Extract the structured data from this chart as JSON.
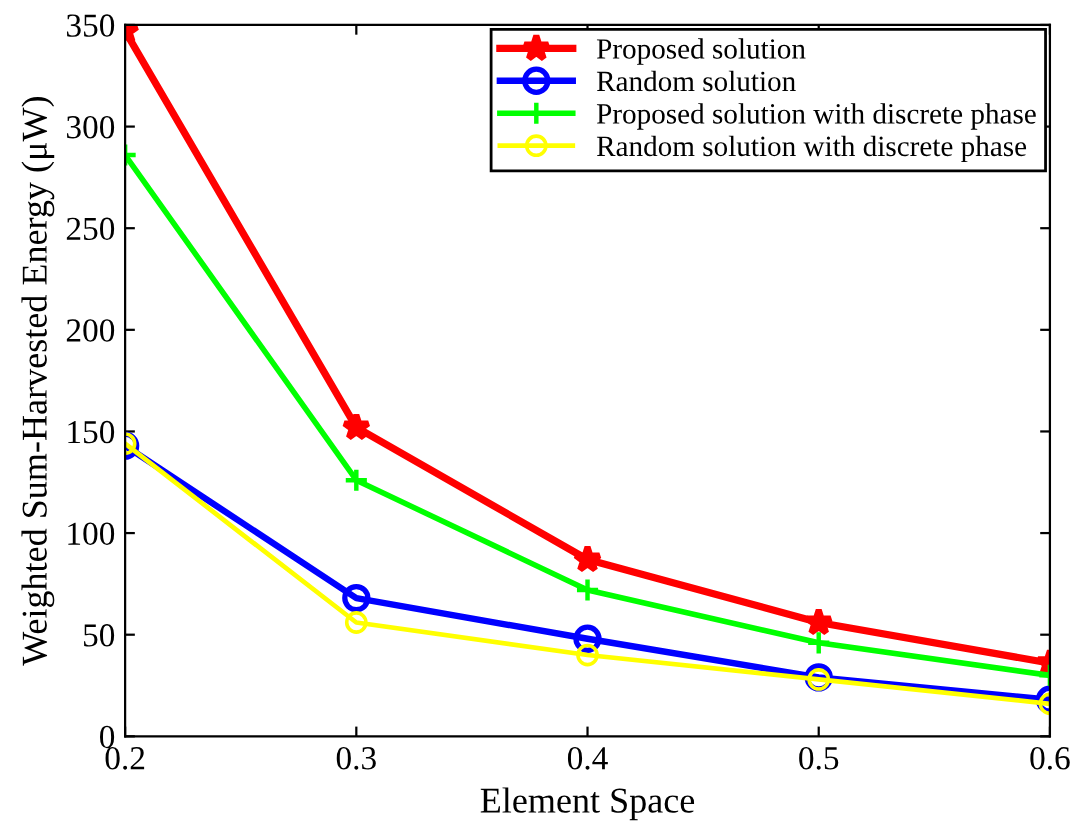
{
  "chart_data": {
    "type": "line",
    "xlabel": "Element Space",
    "ylabel": "Weighted Sum-Harvested Energy (μW)",
    "x": [
      0.2,
      0.3,
      0.4,
      0.5,
      0.6
    ],
    "series": [
      {
        "name": "Proposed solution",
        "color": "#ff0000",
        "marker": "star",
        "values": [
          347,
          152,
          87,
          56,
          36
        ]
      },
      {
        "name": "Random solution",
        "color": "#0000ff",
        "marker": "circle",
        "values": [
          143,
          68,
          48,
          29,
          18
        ]
      },
      {
        "name": "Proposed solution with discrete phase",
        "color": "#00ff00",
        "marker": "cross",
        "values": [
          286,
          126,
          72,
          46,
          30
        ]
      },
      {
        "name": "Random solution with discrete phase",
        "color": "#ffff00",
        "marker": "circle",
        "values": [
          144,
          56,
          40,
          28,
          16
        ]
      }
    ],
    "xlim": [
      0.2,
      0.6
    ],
    "xticks": [
      0.2,
      0.3,
      0.4,
      0.5,
      0.6
    ],
    "ylim": [
      0,
      350
    ],
    "yticks": [
      0,
      50,
      100,
      150,
      200,
      250,
      300,
      350
    ],
    "grid": false,
    "legend": "top right",
    "line_style": "solid"
  }
}
